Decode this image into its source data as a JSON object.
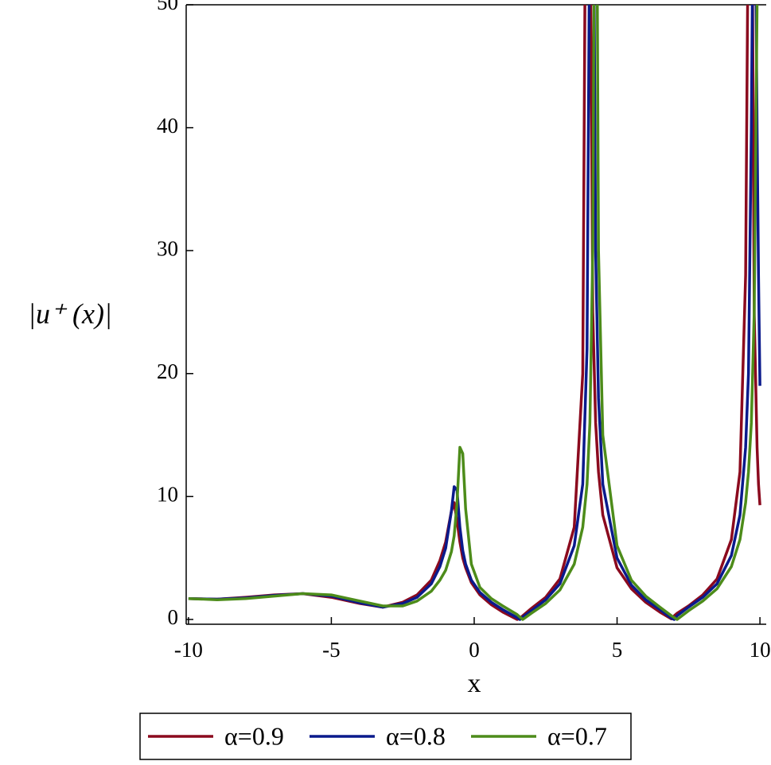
{
  "chart_data": {
    "type": "line",
    "x_label": "x",
    "y_label": "|u⁺ (x)|",
    "x": [
      -10,
      -9,
      -8,
      -7,
      -6,
      -5,
      -4,
      -3.2,
      -2.5,
      -2,
      -1.5,
      -1.2,
      -1,
      -0.8,
      -0.7,
      -0.6,
      -0.5,
      -0.4,
      -0.3,
      -0.1,
      0.2,
      0.6,
      1,
      1.5,
      1.6,
      1.7,
      2,
      2.5,
      3,
      3.5,
      3.8,
      3.95,
      4.05,
      4.15,
      4.25,
      4.35,
      4.5,
      5,
      5.5,
      6,
      6.5,
      6.9,
      7,
      7.1,
      7.5,
      8,
      8.5,
      9,
      9.3,
      9.5,
      9.6,
      9.7,
      9.8,
      9.9,
      9.95,
      10
    ],
    "series": [
      {
        "name": "α=0.9",
        "color": "#8b0a1e",
        "values": [
          1.7,
          1.65,
          1.8,
          2.0,
          2.1,
          1.8,
          1.3,
          1.0,
          1.4,
          2.0,
          3.2,
          4.8,
          6.3,
          8.8,
          9.5,
          8.0,
          6.3,
          5.0,
          4.2,
          3.0,
          2.0,
          1.2,
          0.6,
          0,
          0.1,
          0.3,
          0.9,
          1.8,
          3.3,
          7.5,
          20,
          80,
          60,
          25,
          16,
          12,
          8.5,
          4.2,
          2.5,
          1.4,
          0.6,
          0.05,
          0.3,
          0.5,
          1.1,
          2.0,
          3.3,
          6.5,
          12,
          28,
          60,
          70,
          25,
          14,
          11,
          9.3
        ]
      },
      {
        "name": "α=0.8",
        "color": "#0a1a8c",
        "values": [
          1.7,
          1.65,
          1.75,
          1.95,
          2.1,
          1.9,
          1.35,
          1.0,
          1.3,
          1.8,
          2.9,
          4.3,
          5.8,
          8.8,
          10.8,
          10.5,
          7.5,
          5.6,
          4.5,
          3.2,
          2.2,
          1.4,
          0.8,
          0.15,
          0,
          0.2,
          0.7,
          1.6,
          2.9,
          6,
          11,
          22,
          60,
          70,
          30,
          18,
          11,
          5,
          2.8,
          1.6,
          0.8,
          0.1,
          0,
          0.3,
          1.0,
          1.8,
          2.9,
          5.2,
          8.5,
          14,
          20,
          40,
          70,
          40,
          28,
          19
        ]
      },
      {
        "name": "α=0.7",
        "color": "#4d8c1a",
        "values": [
          1.7,
          1.6,
          1.7,
          1.9,
          2.1,
          2.0,
          1.5,
          1.1,
          1.1,
          1.5,
          2.3,
          3.2,
          4.0,
          5.5,
          6.8,
          9.5,
          14.0,
          13.5,
          9.0,
          4.5,
          2.6,
          1.7,
          1.1,
          0.4,
          0.2,
          0,
          0.5,
          1.3,
          2.4,
          4.5,
          7.5,
          11,
          16,
          30,
          80,
          30,
          15,
          6,
          3.2,
          1.9,
          1.0,
          0.3,
          0.15,
          0,
          0.7,
          1.5,
          2.5,
          4.3,
          6.5,
          9.5,
          12,
          16,
          25,
          50,
          80,
          50
        ]
      }
    ],
    "xlim": [
      -10.08,
      10.22
    ],
    "ylim": [
      -0.39,
      50
    ],
    "xticks": [
      -10,
      -5,
      0,
      5,
      10
    ],
    "yticks": [
      0,
      10,
      20,
      30,
      40,
      50
    ],
    "legend": "bottom"
  }
}
